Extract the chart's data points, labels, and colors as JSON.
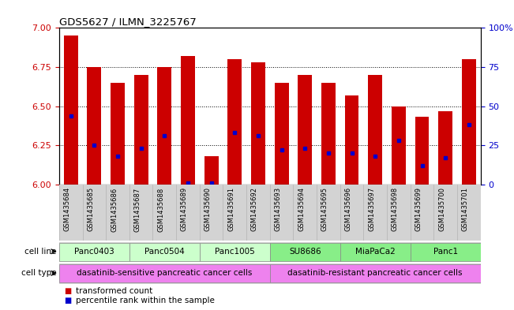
{
  "title": "GDS5627 / ILMN_3225767",
  "samples": [
    "GSM1435684",
    "GSM1435685",
    "GSM1435686",
    "GSM1435687",
    "GSM1435688",
    "GSM1435689",
    "GSM1435690",
    "GSM1435691",
    "GSM1435692",
    "GSM1435693",
    "GSM1435694",
    "GSM1435695",
    "GSM1435696",
    "GSM1435697",
    "GSM1435698",
    "GSM1435699",
    "GSM1435700",
    "GSM1435701"
  ],
  "bar_values": [
    6.95,
    6.75,
    6.65,
    6.7,
    6.75,
    6.82,
    6.18,
    6.8,
    6.78,
    6.65,
    6.7,
    6.65,
    6.57,
    6.7,
    6.5,
    6.43,
    6.47,
    6.8
  ],
  "blue_dot_values": [
    6.44,
    6.25,
    6.18,
    6.23,
    6.31,
    6.01,
    6.01,
    6.33,
    6.31,
    6.22,
    6.23,
    6.2,
    6.2,
    6.18,
    6.28,
    6.12,
    6.17,
    6.38
  ],
  "ylim_left": [
    6.0,
    7.0
  ],
  "ylim_right": [
    0,
    100
  ],
  "yticks_left": [
    6.0,
    6.25,
    6.5,
    6.75,
    7.0
  ],
  "yticks_right": [
    0,
    25,
    50,
    75,
    100
  ],
  "bar_color": "#CC0000",
  "dot_color": "#0000CC",
  "bar_width": 0.6,
  "cell_lines": [
    {
      "label": "Panc0403",
      "start": 0,
      "end": 2,
      "color": "#ccffcc"
    },
    {
      "label": "Panc0504",
      "start": 3,
      "end": 5,
      "color": "#ccffcc"
    },
    {
      "label": "Panc1005",
      "start": 6,
      "end": 8,
      "color": "#ccffcc"
    },
    {
      "label": "SU8686",
      "start": 9,
      "end": 11,
      "color": "#88ee88"
    },
    {
      "label": "MiaPaCa2",
      "start": 12,
      "end": 14,
      "color": "#88ee88"
    },
    {
      "label": "Panc1",
      "start": 15,
      "end": 17,
      "color": "#88ee88"
    }
  ],
  "cell_types": [
    {
      "label": "dasatinib-sensitive pancreatic cancer cells",
      "start": 0,
      "end": 8,
      "color": "#ee82ee"
    },
    {
      "label": "dasatinib-resistant pancreatic cancer cells",
      "start": 9,
      "end": 17,
      "color": "#ee82ee"
    }
  ],
  "background_color": "#ffffff",
  "tick_color_left": "#cc0000",
  "tick_color_right": "#0000cc",
  "grid_dotted_at": [
    6.25,
    6.5,
    6.75
  ],
  "legend": [
    {
      "color": "#CC0000",
      "label": "transformed count"
    },
    {
      "color": "#0000CC",
      "label": "percentile rank within the sample"
    }
  ]
}
